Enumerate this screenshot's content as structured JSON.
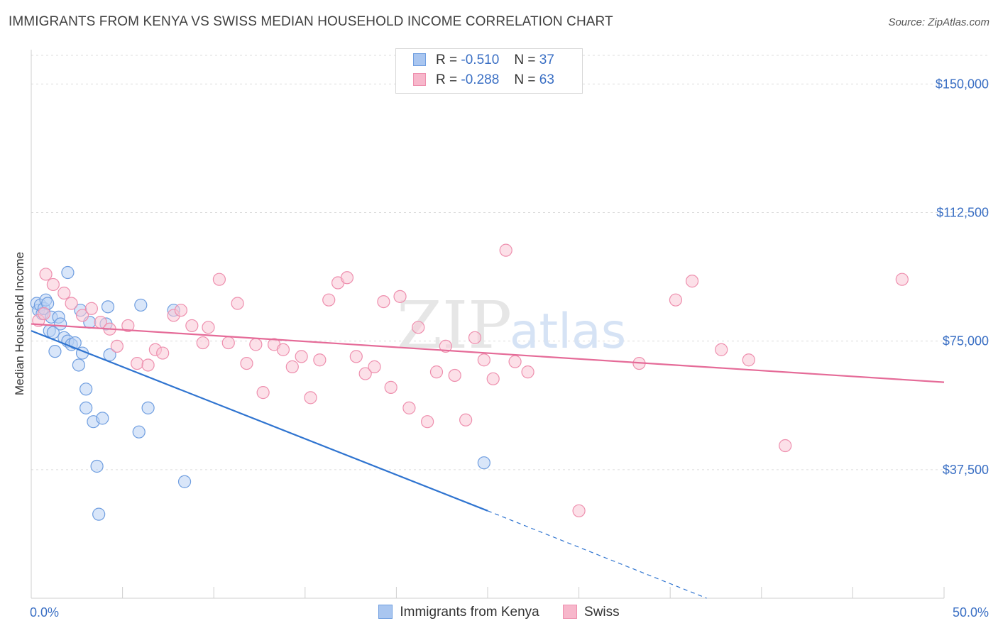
{
  "title": "IMMIGRANTS FROM KENYA VS SWISS MEDIAN HOUSEHOLD INCOME CORRELATION CHART",
  "source": "Source: ZipAtlas.com",
  "watermark": {
    "zip": "ZIP",
    "atlas": "atlas"
  },
  "legend_stats": [
    {
      "r_label": "R =",
      "r_value": "-0.510",
      "n_label": "N =",
      "n_value": "37",
      "color": "#a9c6f0",
      "border": "#6f9ee0"
    },
    {
      "r_label": "R =",
      "r_value": "-0.288",
      "n_label": "N =",
      "n_value": "63",
      "color": "#f7b7cb",
      "border": "#ee8fae"
    }
  ],
  "chart_data": {
    "type": "scatter",
    "title": "IMMIGRANTS FROM KENYA VS SWISS MEDIAN HOUSEHOLD INCOME CORRELATION CHART",
    "xlabel": "",
    "ylabel": "Median Household Income",
    "xlim": [
      0,
      50
    ],
    "ylim": [
      0,
      160000
    ],
    "x_tick_labels": [
      "0.0%",
      "50.0%"
    ],
    "y_ticks": [
      37500,
      75000,
      112500,
      150000
    ],
    "y_tick_labels": [
      "$37,500",
      "$75,000",
      "$112,500",
      "$150,000"
    ],
    "grid": true,
    "legend_position": "bottom",
    "series": [
      {
        "name": "Immigrants from Kenya",
        "color": "#6f9ee0",
        "fill": "#b9d2f4",
        "line_color": "#2f74d0",
        "trend": {
          "x0": 0,
          "y0": 78000,
          "x1": 25,
          "y1": 25500,
          "dash_to_x": 37,
          "dash_to_y": 0
        },
        "points": [
          [
            0.3,
            86000
          ],
          [
            0.4,
            84000
          ],
          [
            0.5,
            85500
          ],
          [
            0.6,
            83000
          ],
          [
            0.7,
            84500
          ],
          [
            0.8,
            87000
          ],
          [
            0.9,
            86000
          ],
          [
            1.0,
            78000
          ],
          [
            1.1,
            82000
          ],
          [
            1.2,
            77500
          ],
          [
            1.3,
            72000
          ],
          [
            1.5,
            82000
          ],
          [
            1.6,
            80000
          ],
          [
            1.8,
            76000
          ],
          [
            2.0,
            75000
          ],
          [
            2.2,
            74000
          ],
          [
            2.4,
            74500
          ],
          [
            2.6,
            68000
          ],
          [
            2.7,
            84000
          ],
          [
            2.8,
            71500
          ],
          [
            3.0,
            61000
          ],
          [
            3.0,
            55500
          ],
          [
            3.2,
            80500
          ],
          [
            3.4,
            51500
          ],
          [
            3.6,
            38500
          ],
          [
            3.7,
            24500
          ],
          [
            3.9,
            52500
          ],
          [
            4.1,
            80000
          ],
          [
            4.2,
            85000
          ],
          [
            4.3,
            71000
          ],
          [
            2.0,
            95000
          ],
          [
            5.9,
            48500
          ],
          [
            6.0,
            85500
          ],
          [
            6.4,
            55500
          ],
          [
            7.8,
            84000
          ],
          [
            8.4,
            34000
          ],
          [
            24.8,
            39500
          ]
        ]
      },
      {
        "name": "Swiss",
        "color": "#ee8fae",
        "fill": "#f9c7d6",
        "line_color": "#e56b98",
        "trend": {
          "x0": 0,
          "y0": 80000,
          "x1": 50,
          "y1": 63000
        },
        "points": [
          [
            0.4,
            81000
          ],
          [
            0.7,
            83000
          ],
          [
            0.8,
            94500
          ],
          [
            1.2,
            91500
          ],
          [
            1.8,
            89000
          ],
          [
            2.2,
            86000
          ],
          [
            2.8,
            82500
          ],
          [
            3.3,
            84500
          ],
          [
            3.8,
            80500
          ],
          [
            4.3,
            78500
          ],
          [
            4.7,
            73500
          ],
          [
            5.3,
            79500
          ],
          [
            5.8,
            68500
          ],
          [
            6.4,
            68000
          ],
          [
            6.8,
            72500
          ],
          [
            7.2,
            71500
          ],
          [
            7.8,
            82500
          ],
          [
            8.2,
            84000
          ],
          [
            8.8,
            79500
          ],
          [
            9.4,
            74500
          ],
          [
            9.7,
            79000
          ],
          [
            10.3,
            93000
          ],
          [
            10.8,
            74500
          ],
          [
            11.3,
            86000
          ],
          [
            11.8,
            68500
          ],
          [
            12.3,
            74000
          ],
          [
            12.7,
            60000
          ],
          [
            13.3,
            74000
          ],
          [
            13.8,
            72500
          ],
          [
            14.3,
            67500
          ],
          [
            14.8,
            70500
          ],
          [
            15.3,
            58500
          ],
          [
            15.8,
            69500
          ],
          [
            16.3,
            87000
          ],
          [
            16.8,
            92000
          ],
          [
            17.3,
            93500
          ],
          [
            17.8,
            70500
          ],
          [
            18.3,
            65500
          ],
          [
            18.8,
            67500
          ],
          [
            19.3,
            86500
          ],
          [
            19.7,
            61500
          ],
          [
            20.2,
            88000
          ],
          [
            20.7,
            55500
          ],
          [
            21.2,
            79000
          ],
          [
            21.7,
            51500
          ],
          [
            22.2,
            66000
          ],
          [
            22.7,
            73500
          ],
          [
            23.2,
            65000
          ],
          [
            23.8,
            52000
          ],
          [
            24.3,
            76000
          ],
          [
            24.8,
            69500
          ],
          [
            25.3,
            64000
          ],
          [
            26.0,
            101500
          ],
          [
            26.5,
            69000
          ],
          [
            27.2,
            66000
          ],
          [
            30.0,
            25500
          ],
          [
            33.3,
            68500
          ],
          [
            35.3,
            87000
          ],
          [
            36.2,
            92500
          ],
          [
            37.8,
            72500
          ],
          [
            39.3,
            69500
          ],
          [
            41.3,
            44500
          ],
          [
            47.7,
            93000
          ]
        ]
      }
    ]
  }
}
